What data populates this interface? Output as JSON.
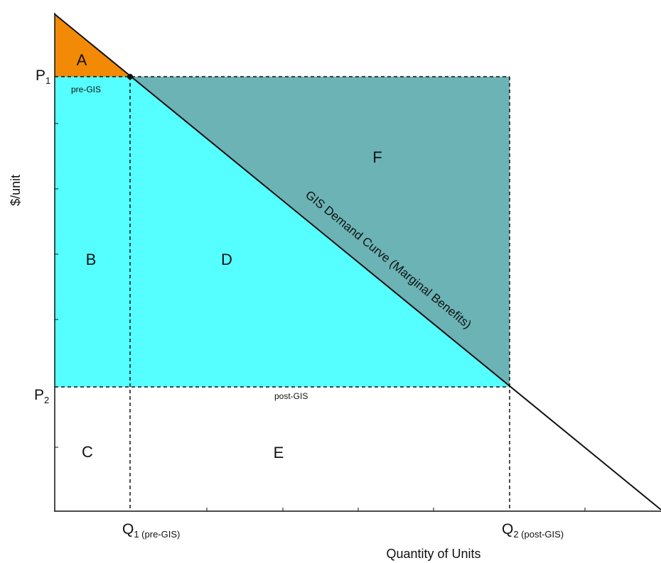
{
  "colors": {
    "consumer_surplus_pre": "#f38a05",
    "cost_saving_region": "#55ffff",
    "added_benefit_region": "#6bb3b5",
    "background": "#ffffff",
    "line": "#111111"
  },
  "axes": {
    "y_title": "$/unit",
    "x_title": "Quantity of Units",
    "p1": {
      "symbol": "P",
      "sub": "1",
      "note": "pre-GIS"
    },
    "p2": {
      "symbol": "P",
      "sub": "2",
      "note": "post-GIS"
    },
    "q1": {
      "symbol": "Q",
      "sub": "1 (pre-GIS)"
    },
    "q2": {
      "symbol": "Q",
      "sub": "2 (post-GIS)"
    }
  },
  "curve": {
    "label": "GIS Demand Curve (Marginal Benefits)"
  },
  "regions": {
    "a": "A",
    "b": "B",
    "c": "C",
    "d": "D",
    "e": "E",
    "f": "F"
  }
}
